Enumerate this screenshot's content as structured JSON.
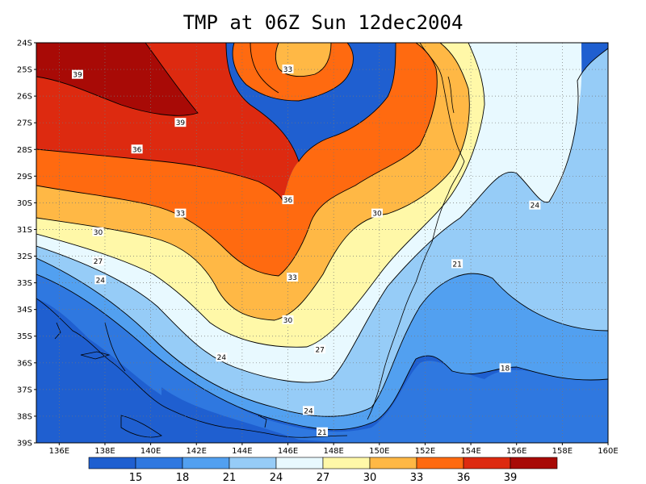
{
  "title": "TMP at 06Z Sun 12dec2004",
  "axes": {
    "lat_labels": [
      "24S",
      "25S",
      "26S",
      "27S",
      "28S",
      "29S",
      "30S",
      "31S",
      "32S",
      "33S",
      "34S",
      "35S",
      "36S",
      "37S",
      "38S",
      "39S"
    ],
    "lon_labels": [
      "136E",
      "138E",
      "140E",
      "142E",
      "144E",
      "146E",
      "148E",
      "150E",
      "152E",
      "154E",
      "156E",
      "158E",
      "160E"
    ],
    "grid": "dotted"
  },
  "contour_labels": [
    {
      "text": "39",
      "lon": 136.8,
      "lat": -25.2
    },
    {
      "text": "39",
      "lon": 141.3,
      "lat": -27.0
    },
    {
      "text": "36",
      "lon": 139.4,
      "lat": -28.0
    },
    {
      "text": "33",
      "lon": 146.0,
      "lat": -25.0
    },
    {
      "text": "36",
      "lon": 146.0,
      "lat": -29.9
    },
    {
      "text": "33",
      "lon": 141.3,
      "lat": -30.4
    },
    {
      "text": "30",
      "lon": 149.9,
      "lat": -30.4
    },
    {
      "text": "30",
      "lon": 137.7,
      "lat": -31.1
    },
    {
      "text": "27",
      "lon": 137.7,
      "lat": -32.2
    },
    {
      "text": "24",
      "lon": 137.8,
      "lat": -32.9
    },
    {
      "text": "33",
      "lon": 146.2,
      "lat": -32.8
    },
    {
      "text": "21",
      "lon": 153.4,
      "lat": -32.3
    },
    {
      "text": "24",
      "lon": 156.8,
      "lat": -30.1
    },
    {
      "text": "30",
      "lon": 146.0,
      "lat": -34.4
    },
    {
      "text": "27",
      "lon": 147.4,
      "lat": -35.5
    },
    {
      "text": "24",
      "lon": 143.1,
      "lat": -35.8
    },
    {
      "text": "18",
      "lon": 155.5,
      "lat": -36.2
    },
    {
      "text": "24",
      "lon": 146.9,
      "lat": -37.8
    },
    {
      "text": "21",
      "lon": 147.5,
      "lat": -38.6
    }
  ],
  "colorbar": {
    "labels": [
      "15",
      "18",
      "21",
      "24",
      "27",
      "30",
      "33",
      "36",
      "39"
    ],
    "colors": [
      "#1f5fd0",
      "#2f78e0",
      "#52a0f0",
      "#96ccf7",
      "#e8f9ff",
      "#fff8a8",
      "#ffb845",
      "#ff6a10",
      "#dd2a10",
      "#a80a06"
    ]
  },
  "chart_data": {
    "type": "contour-map",
    "title": "TMP at 06Z Sun 12dec2004",
    "xlabel": "",
    "ylabel": "",
    "lon_range": [
      135,
      160
    ],
    "lat_range": [
      -39,
      -24
    ],
    "levels": [
      15,
      18,
      21,
      24,
      27,
      30,
      33,
      36,
      39
    ],
    "level_colors": [
      "#1f5fd0",
      "#2f78e0",
      "#52a0f0",
      "#96ccf7",
      "#e8f9ff",
      "#fff8a8",
      "#ffb845",
      "#ff6a10",
      "#dd2a10",
      "#a80a06"
    ],
    "grid": true
  }
}
